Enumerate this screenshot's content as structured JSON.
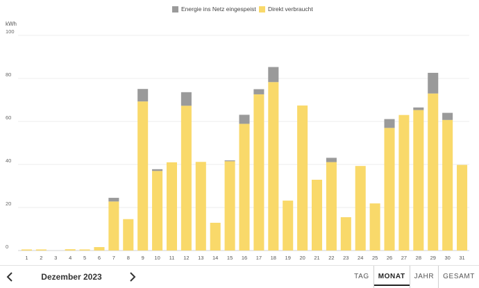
{
  "chart_data": {
    "type": "bar",
    "stacked": true,
    "ylabel": "kWh",
    "ylim": [
      0,
      100
    ],
    "yticks": [
      0,
      20,
      40,
      60,
      80,
      100
    ],
    "grid": true,
    "legend_placement": "top-center",
    "categories": [
      "1",
      "2",
      "3",
      "4",
      "5",
      "6",
      "7",
      "8",
      "9",
      "10",
      "11",
      "12",
      "13",
      "14",
      "15",
      "16",
      "17",
      "18",
      "19",
      "20",
      "21",
      "22",
      "23",
      "24",
      "25",
      "26",
      "27",
      "28",
      "29",
      "30",
      "31"
    ],
    "series": [
      {
        "name": "Direkt verbraucht",
        "color": "#f9d96a",
        "values": [
          0.5,
          0.5,
          0,
          0.6,
          0.5,
          1.6,
          22.8,
          14.6,
          69.3,
          37.0,
          41.0,
          67.3,
          41.2,
          12.9,
          41.5,
          58.9,
          72.6,
          78.3,
          23.2,
          67.4,
          32.9,
          41.1,
          15.5,
          39.3,
          21.9,
          57.0,
          63.0,
          65.3,
          73.0,
          60.7,
          39.8
        ]
      },
      {
        "name": "Energie ins Netz eingespeist",
        "color": "#9a9a9a",
        "values": [
          0,
          0,
          0,
          0,
          0,
          0,
          1.7,
          0,
          5.8,
          0.8,
          0,
          6.3,
          0,
          0,
          0.4,
          4.2,
          2.4,
          7.0,
          0,
          0,
          0,
          2.0,
          0,
          0,
          0,
          4.1,
          0,
          1.2,
          9.6,
          3.3,
          0
        ]
      }
    ]
  },
  "legend": {
    "items": [
      {
        "label": "Energie ins Netz eingespeist",
        "color": "#9a9a9a"
      },
      {
        "label": "Direkt verbraucht",
        "color": "#f9d96a"
      }
    ]
  },
  "nav": {
    "period_label": "Dezember 2023",
    "prev_icon": "chevron-left-icon",
    "next_icon": "chevron-right-icon"
  },
  "tabs": [
    {
      "label": "TAG",
      "active": false
    },
    {
      "label": "MONAT",
      "active": true
    },
    {
      "label": "JAHR",
      "active": false
    },
    {
      "label": "GESAMT",
      "active": false
    }
  ]
}
